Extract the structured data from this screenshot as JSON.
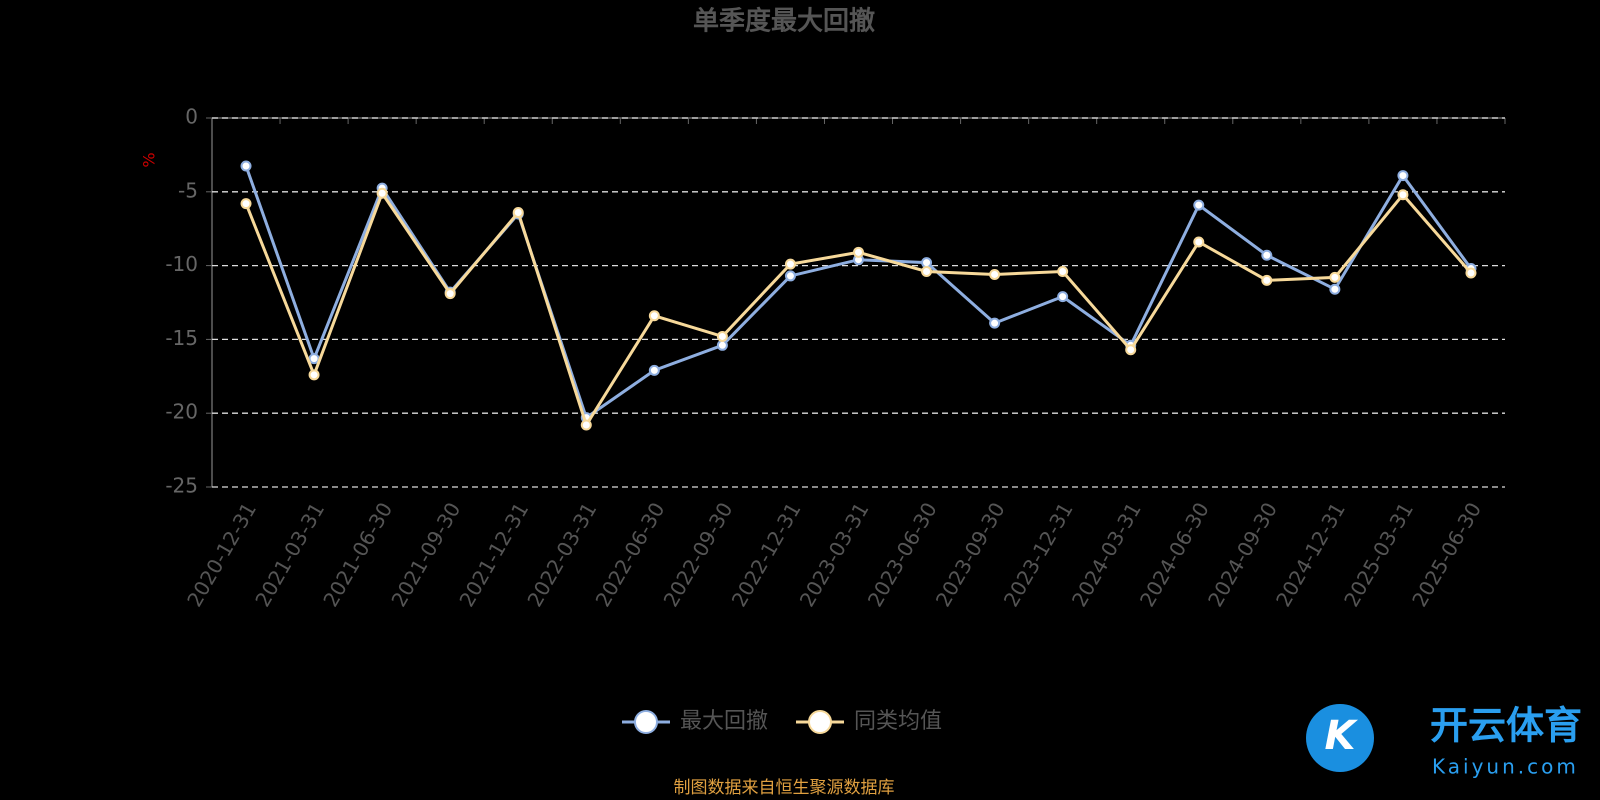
{
  "chart_data": {
    "type": "line",
    "title": "单季度最大回撤",
    "y_label": "%",
    "categories": [
      "2020-12-31",
      "2021-03-31",
      "2021-06-30",
      "2021-09-30",
      "2021-12-31",
      "2022-03-31",
      "2022-06-30",
      "2022-09-30",
      "2022-12-31",
      "2023-03-31",
      "2023-06-30",
      "2023-09-30",
      "2023-12-31",
      "2024-03-31",
      "2024-06-30",
      "2024-09-30",
      "2024-12-31",
      "2025-03-31",
      "2025-06-30"
    ],
    "series": [
      {
        "name": "最大回撤",
        "color": "#8eaee0",
        "values": [
          -3.25,
          -16.3,
          -4.75,
          -11.8,
          -6.5,
          -20.3,
          -17.1,
          -15.4,
          -10.7,
          -9.6,
          -9.8,
          -13.9,
          -12.1,
          -15.4,
          -5.9,
          -9.3,
          -11.6,
          -3.9,
          -10.2
        ]
      },
      {
        "name": "同类均值",
        "color": "#f7d99a",
        "values": [
          -5.8,
          -17.4,
          -5.1,
          -11.9,
          -6.4,
          -20.8,
          -13.4,
          -14.8,
          -9.9,
          -9.1,
          -10.4,
          -10.6,
          -10.4,
          -15.7,
          -8.4,
          -11.0,
          -10.8,
          -5.2,
          -10.5
        ]
      }
    ],
    "ylim": [
      -25,
      0
    ],
    "yticks": [
      0,
      -5,
      -10,
      -15,
      -20,
      -25
    ],
    "grid": true,
    "source": "制图数据来自恒生聚源数据库",
    "watermark": {
      "brand": "开云体育",
      "url": "Kaiyun.com"
    }
  }
}
